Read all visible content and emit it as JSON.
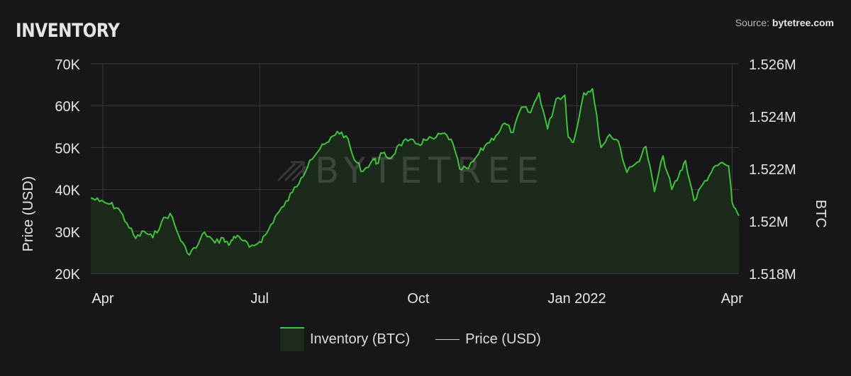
{
  "header": {
    "title": "INVENTORY",
    "source_prefix": "Source:",
    "source_site": "bytetree.com"
  },
  "watermark": {
    "text": "BYTETREE"
  },
  "legend": {
    "series1": "Inventory (BTC)",
    "series2": "Price (USD)"
  },
  "colors": {
    "background": "#17171a",
    "inventory_line": "#3fc33a",
    "inventory_fill": "#1c2b1c",
    "gridline": "#3a3a3e"
  },
  "chart_data": {
    "type": "area",
    "title": "INVENTORY",
    "y_left_label": "Price (USD)",
    "y_right_label": "BTC",
    "y_left_ticks": [
      "20K",
      "30K",
      "40K",
      "50K",
      "60K",
      "70K"
    ],
    "y_right_ticks": [
      "1.518M",
      "1.52M",
      "1.522M",
      "1.524M",
      "1.526M"
    ],
    "y_right_range": [
      1518000,
      1526000
    ],
    "x_ticks": [
      "Apr",
      "Jul",
      "Oct",
      "Jan 2022",
      "Apr"
    ],
    "x_tick_dates": [
      "2021-04-01",
      "2021-07-01",
      "2021-10-01",
      "2022-01-01",
      "2022-04-01"
    ],
    "x_range": [
      "2021-03-25",
      "2022-04-05"
    ],
    "grid": true,
    "legend_position": "bottom",
    "series": [
      {
        "name": "Inventory (BTC)",
        "axis": "right",
        "x": [
          "2021-03-25",
          "2021-03-30",
          "2021-04-05",
          "2021-04-10",
          "2021-04-15",
          "2021-04-20",
          "2021-04-25",
          "2021-04-30",
          "2021-05-05",
          "2021-05-10",
          "2021-05-15",
          "2021-05-20",
          "2021-05-25",
          "2021-05-30",
          "2021-06-05",
          "2021-06-10",
          "2021-06-13",
          "2021-06-16",
          "2021-06-20",
          "2021-06-25",
          "2021-07-01",
          "2021-07-05",
          "2021-07-10",
          "2021-07-15",
          "2021-07-20",
          "2021-07-25",
          "2021-07-30",
          "2021-08-05",
          "2021-08-10",
          "2021-08-15",
          "2021-08-20",
          "2021-08-25",
          "2021-08-30",
          "2021-09-05",
          "2021-09-07",
          "2021-09-10",
          "2021-09-15",
          "2021-09-20",
          "2021-09-25",
          "2021-10-01",
          "2021-10-05",
          "2021-10-10",
          "2021-10-15",
          "2021-10-20",
          "2021-10-25",
          "2021-10-30",
          "2021-11-05",
          "2021-11-10",
          "2021-11-15",
          "2021-11-20",
          "2021-11-25",
          "2021-11-30",
          "2021-12-05",
          "2021-12-10",
          "2021-12-15",
          "2021-12-20",
          "2021-12-25",
          "2021-12-27",
          "2021-12-30",
          "2022-01-05",
          "2022-01-10",
          "2022-01-15",
          "2022-01-20",
          "2022-01-25",
          "2022-01-30",
          "2022-02-05",
          "2022-02-10",
          "2022-02-15",
          "2022-02-20",
          "2022-02-25",
          "2022-03-01",
          "2022-03-05",
          "2022-03-10",
          "2022-03-15",
          "2022-03-20",
          "2022-03-25",
          "2022-03-30",
          "2022-04-01",
          "2022-04-05"
        ],
        "values": [
          1520880,
          1520750,
          1520640,
          1520480,
          1519910,
          1519330,
          1519600,
          1519360,
          1519950,
          1520290,
          1519450,
          1518770,
          1518960,
          1519570,
          1519160,
          1519350,
          1519070,
          1519410,
          1519310,
          1519000,
          1519210,
          1519520,
          1520170,
          1520560,
          1521100,
          1521640,
          1522310,
          1522750,
          1523020,
          1523420,
          1523250,
          1522320,
          1521900,
          1522370,
          1522200,
          1522580,
          1522390,
          1522920,
          1523050,
          1522930,
          1523080,
          1523130,
          1523340,
          1523120,
          1521980,
          1522000,
          1522550,
          1522970,
          1523260,
          1523730,
          1523380,
          1524350,
          1524130,
          1524890,
          1523510,
          1524670,
          1524800,
          1523200,
          1523000,
          1524890,
          1525050,
          1522800,
          1523300,
          1523050,
          1521850,
          1522240,
          1522840,
          1521120,
          1522480,
          1521200,
          1521700,
          1522300,
          1520770,
          1521400,
          1521860,
          1522200,
          1522100,
          1520720,
          1520200
        ]
      }
    ]
  }
}
